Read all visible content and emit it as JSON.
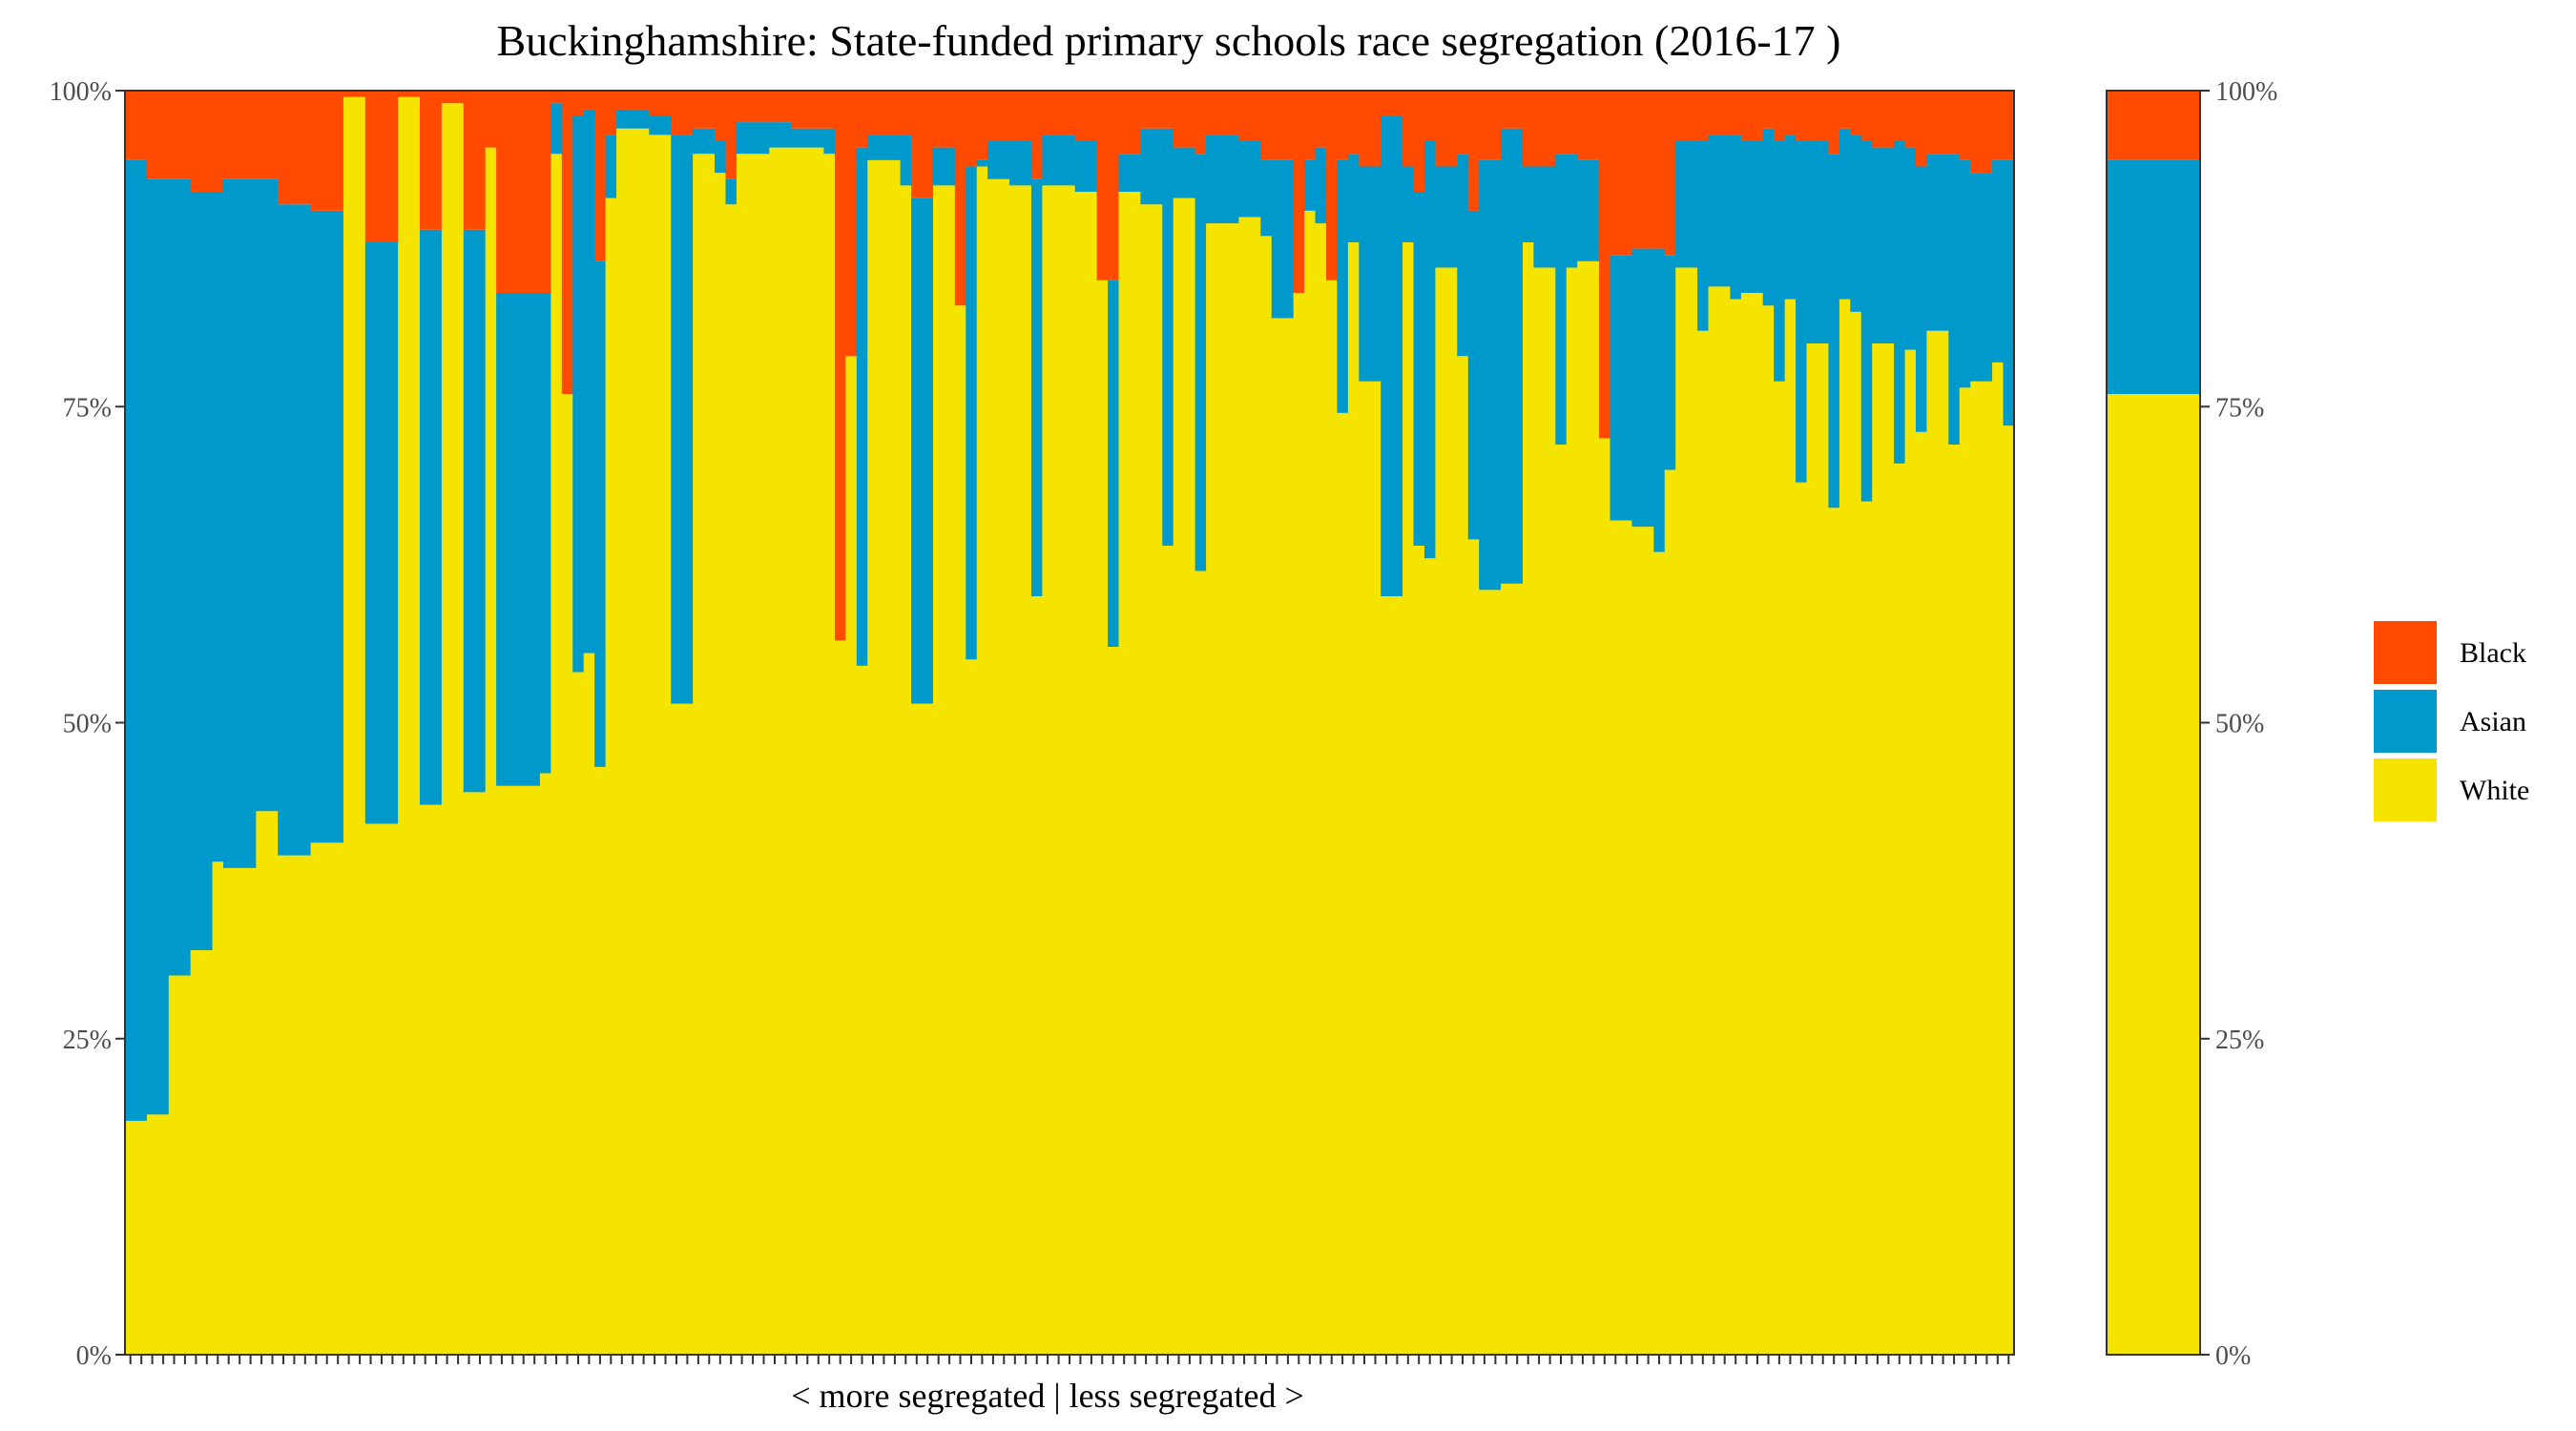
{
  "chart_data": {
    "type": "bar",
    "stacked": true,
    "normalized": true,
    "title": "Buckinghamshire: State-funded primary schools race segregation (2016-17 )",
    "xlabel": "< more segregated | less segregated >",
    "ylabel": "",
    "ylim": [
      0,
      1
    ],
    "y_ticks": [
      "0%",
      "25%",
      "50%",
      "75%",
      "100%"
    ],
    "legend": {
      "placement": "right",
      "entries": [
        "Black",
        "Asian",
        "White"
      ]
    },
    "colors": {
      "Black": "#ff4a00",
      "Asian": "#0099cc",
      "White": "#f4e400"
    },
    "series_order_bottom_to_top": [
      "White",
      "Asian",
      "Black"
    ],
    "overall": {
      "White": 0.76,
      "Asian": 0.185,
      "Black": 0.055
    },
    "schools": [
      {
        "w": 2,
        "white": 0.185,
        "asian": 0.76
      },
      {
        "w": 2,
        "white": 0.19,
        "asian": 0.74
      },
      {
        "w": 2,
        "white": 0.3,
        "asian": 0.63
      },
      {
        "w": 2,
        "white": 0.32,
        "asian": 0.6
      },
      {
        "w": 1,
        "white": 0.39,
        "asian": 0.53
      },
      {
        "w": 3,
        "white": 0.385,
        "asian": 0.545
      },
      {
        "w": 2,
        "white": 0.43,
        "asian": 0.5
      },
      {
        "w": 3,
        "white": 0.395,
        "asian": 0.515
      },
      {
        "w": 3,
        "white": 0.405,
        "asian": 0.5
      },
      {
        "w": 2,
        "white": 0.995,
        "asian": 0.0
      },
      {
        "w": 3,
        "white": 0.42,
        "asian": 0.46
      },
      {
        "w": 2,
        "white": 0.995,
        "asian": 0.0
      },
      {
        "w": 2,
        "white": 0.435,
        "asian": 0.455
      },
      {
        "w": 2,
        "white": 0.99,
        "asian": 0.0
      },
      {
        "w": 2,
        "white": 0.445,
        "asian": 0.445
      },
      {
        "w": 1,
        "white": 0.955,
        "asian": 0.0
      },
      {
        "w": 4,
        "white": 0.45,
        "asian": 0.39
      },
      {
        "w": 1,
        "white": 0.46,
        "asian": 0.38
      },
      {
        "w": 1,
        "white": 0.95,
        "asian": 0.04
      },
      {
        "w": 1,
        "white": 0.76,
        "asian": 0.0
      },
      {
        "w": 1,
        "white": 0.54,
        "asian": 0.44
      },
      {
        "w": 1,
        "white": 0.555,
        "asian": 0.43
      },
      {
        "w": 1,
        "white": 0.465,
        "asian": 0.4
      },
      {
        "w": 1,
        "white": 0.915,
        "asian": 0.05
      },
      {
        "w": 3,
        "white": 0.97,
        "asian": 0.015
      },
      {
        "w": 2,
        "white": 0.965,
        "asian": 0.015
      },
      {
        "w": 2,
        "white": 0.515,
        "asian": 0.45
      },
      {
        "w": 2,
        "white": 0.95,
        "asian": 0.02
      },
      {
        "w": 1,
        "white": 0.935,
        "asian": 0.025
      },
      {
        "w": 1,
        "white": 0.91,
        "asian": 0.02
      },
      {
        "w": 3,
        "white": 0.95,
        "asian": 0.025
      },
      {
        "w": 2,
        "white": 0.955,
        "asian": 0.02
      },
      {
        "w": 3,
        "white": 0.955,
        "asian": 0.015
      },
      {
        "w": 1,
        "white": 0.95,
        "asian": 0.02
      },
      {
        "w": 1,
        "white": 0.565,
        "asian": 0.0
      },
      {
        "w": 1,
        "white": 0.79,
        "asian": 0.0
      },
      {
        "w": 1,
        "white": 0.545,
        "asian": 0.41
      },
      {
        "w": 3,
        "white": 0.945,
        "asian": 0.02
      },
      {
        "w": 1,
        "white": 0.925,
        "asian": 0.04
      },
      {
        "w": 2,
        "white": 0.515,
        "asian": 0.4
      },
      {
        "w": 2,
        "white": 0.925,
        "asian": 0.03
      },
      {
        "w": 1,
        "white": 0.83,
        "asian": 0.0
      },
      {
        "w": 1,
        "white": 0.55,
        "asian": 0.39
      },
      {
        "w": 1,
        "white": 0.94,
        "asian": 0.005
      },
      {
        "w": 2,
        "white": 0.93,
        "asian": 0.03
      },
      {
        "w": 2,
        "white": 0.925,
        "asian": 0.035
      },
      {
        "w": 1,
        "white": 0.6,
        "asian": 0.33
      },
      {
        "w": 3,
        "white": 0.925,
        "asian": 0.04
      },
      {
        "w": 2,
        "white": 0.92,
        "asian": 0.04
      },
      {
        "w": 1,
        "white": 0.85,
        "asian": 0.0
      },
      {
        "w": 1,
        "white": 0.56,
        "asian": 0.29
      },
      {
        "w": 2,
        "white": 0.92,
        "asian": 0.03
      },
      {
        "w": 2,
        "white": 0.91,
        "asian": 0.06
      },
      {
        "w": 1,
        "white": 0.64,
        "asian": 0.33
      },
      {
        "w": 2,
        "white": 0.915,
        "asian": 0.04
      },
      {
        "w": 1,
        "white": 0.62,
        "asian": 0.33
      },
      {
        "w": 3,
        "white": 0.895,
        "asian": 0.07
      },
      {
        "w": 2,
        "white": 0.9,
        "asian": 0.06
      },
      {
        "w": 1,
        "white": 0.885,
        "asian": 0.06
      },
      {
        "w": 2,
        "white": 0.82,
        "asian": 0.125
      },
      {
        "w": 1,
        "white": 0.84,
        "asian": 0.0
      },
      {
        "w": 1,
        "white": 0.905,
        "asian": 0.04
      },
      {
        "w": 1,
        "white": 0.895,
        "asian": 0.06
      },
      {
        "w": 1,
        "white": 0.85,
        "asian": 0.0
      },
      {
        "w": 1,
        "white": 0.745,
        "asian": 0.2
      },
      {
        "w": 1,
        "white": 0.88,
        "asian": 0.07
      },
      {
        "w": 2,
        "white": 0.77,
        "asian": 0.17
      },
      {
        "w": 2,
        "white": 0.6,
        "asian": 0.38
      },
      {
        "w": 1,
        "white": 0.88,
        "asian": 0.06
      },
      {
        "w": 1,
        "white": 0.64,
        "asian": 0.28
      },
      {
        "w": 1,
        "white": 0.63,
        "asian": 0.33
      },
      {
        "w": 2,
        "white": 0.86,
        "asian": 0.08
      },
      {
        "w": 1,
        "white": 0.79,
        "asian": 0.16
      },
      {
        "w": 1,
        "white": 0.645,
        "asian": 0.26
      },
      {
        "w": 2,
        "white": 0.605,
        "asian": 0.34
      },
      {
        "w": 2,
        "white": 0.61,
        "asian": 0.36
      },
      {
        "w": 1,
        "white": 0.88,
        "asian": 0.06
      },
      {
        "w": 2,
        "white": 0.86,
        "asian": 0.08
      },
      {
        "w": 1,
        "white": 0.72,
        "asian": 0.23
      },
      {
        "w": 1,
        "white": 0.86,
        "asian": 0.09
      },
      {
        "w": 2,
        "white": 0.865,
        "asian": 0.08
      },
      {
        "w": 1,
        "white": 0.725,
        "asian": 0.0
      },
      {
        "w": 2,
        "white": 0.66,
        "asian": 0.21
      },
      {
        "w": 2,
        "white": 0.655,
        "asian": 0.22
      },
      {
        "w": 1,
        "white": 0.635,
        "asian": 0.24
      },
      {
        "w": 1,
        "white": 0.7,
        "asian": 0.17
      },
      {
        "w": 2,
        "white": 0.86,
        "asian": 0.1
      },
      {
        "w": 1,
        "white": 0.81,
        "asian": 0.15
      },
      {
        "w": 2,
        "white": 0.845,
        "asian": 0.12
      },
      {
        "w": 1,
        "white": 0.835,
        "asian": 0.13
      },
      {
        "w": 2,
        "white": 0.84,
        "asian": 0.12
      },
      {
        "w": 1,
        "white": 0.83,
        "asian": 0.14
      },
      {
        "w": 1,
        "white": 0.77,
        "asian": 0.19
      },
      {
        "w": 1,
        "white": 0.835,
        "asian": 0.13
      },
      {
        "w": 1,
        "white": 0.69,
        "asian": 0.27
      },
      {
        "w": 2,
        "white": 0.8,
        "asian": 0.16
      },
      {
        "w": 1,
        "white": 0.67,
        "asian": 0.28
      },
      {
        "w": 1,
        "white": 0.835,
        "asian": 0.135
      },
      {
        "w": 1,
        "white": 0.825,
        "asian": 0.14
      },
      {
        "w": 1,
        "white": 0.675,
        "asian": 0.285
      },
      {
        "w": 2,
        "white": 0.8,
        "asian": 0.155
      },
      {
        "w": 1,
        "white": 0.705,
        "asian": 0.255
      },
      {
        "w": 1,
        "white": 0.795,
        "asian": 0.16
      },
      {
        "w": 1,
        "white": 0.73,
        "asian": 0.21
      },
      {
        "w": 2,
        "white": 0.81,
        "asian": 0.14
      },
      {
        "w": 1,
        "white": 0.72,
        "asian": 0.23
      },
      {
        "w": 1,
        "white": 0.765,
        "asian": 0.18
      },
      {
        "w": 2,
        "white": 0.77,
        "asian": 0.165
      },
      {
        "w": 1,
        "white": 0.785,
        "asian": 0.16
      },
      {
        "w": 1,
        "white": 0.735,
        "asian": 0.21
      }
    ]
  }
}
